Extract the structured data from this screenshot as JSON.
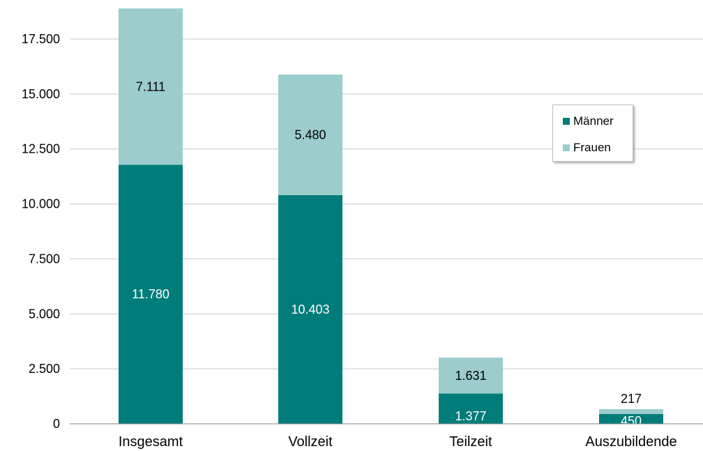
{
  "chart_data": {
    "type": "bar",
    "stacked": true,
    "categories": [
      "Insgesamt",
      "Vollzeit",
      "Teilzeit",
      "Auszubildende"
    ],
    "series": [
      {
        "name": "Männer",
        "values": [
          11780,
          10403,
          1377,
          450
        ],
        "labels": [
          "11.780",
          "10.403",
          "1.377",
          "450"
        ],
        "color": "#007d7a",
        "label_color": "#ffffff"
      },
      {
        "name": "Frauen",
        "values": [
          7111,
          5480,
          1631,
          217
        ],
        "labels": [
          "7.111",
          "5.480",
          "1.631",
          "217"
        ],
        "color": "#9ccccc",
        "label_color": "#000000"
      }
    ],
    "y_ticks": [
      0,
      2500,
      5000,
      7500,
      10000,
      12500,
      15000,
      17500
    ],
    "y_tick_labels": [
      "0",
      "2.500",
      "5.000",
      "7.500",
      "10.000",
      "12.500",
      "15.000",
      "17.500"
    ],
    "ylim": [
      0,
      19000
    ],
    "grid": true,
    "legend_position": "right",
    "title": "",
    "xlabel": "",
    "ylabel": ""
  }
}
